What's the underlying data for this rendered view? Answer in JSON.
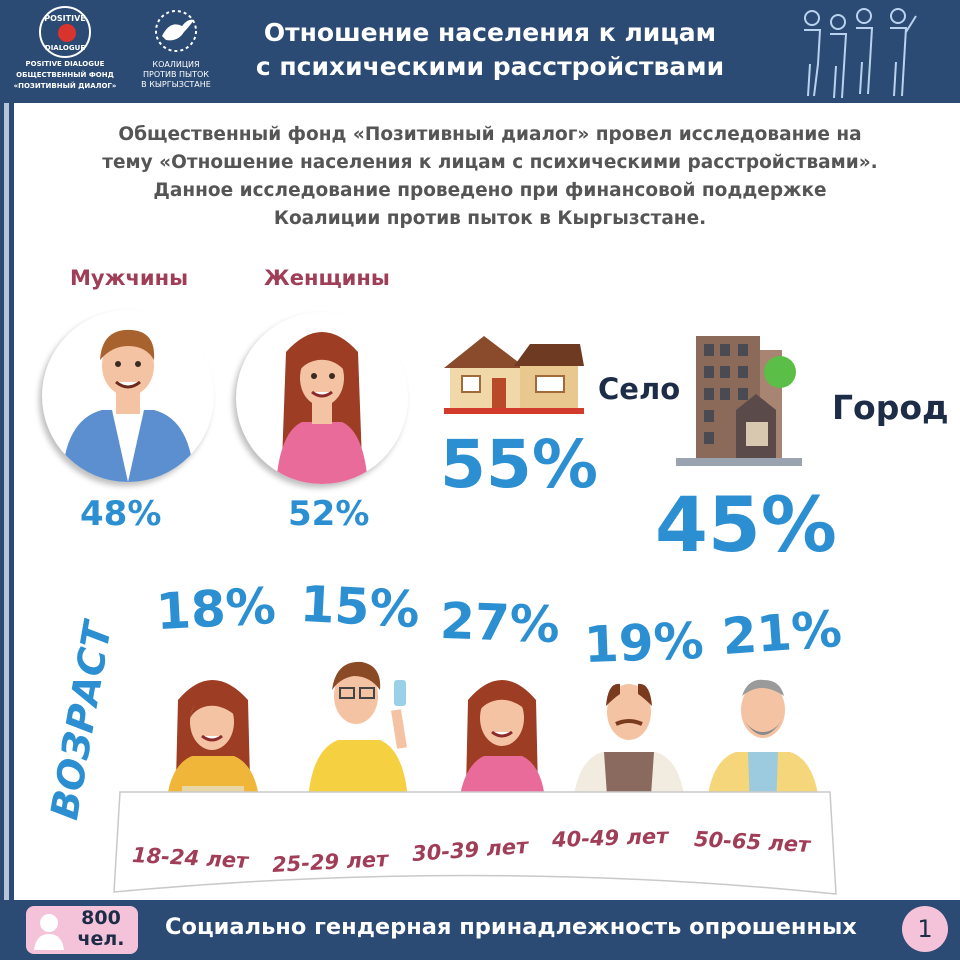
{
  "header": {
    "title_line1": "Отношение населения к лицам",
    "title_line2": "с психическими расстройствами",
    "logo1": {
      "circle_top": "POSITIVE",
      "circle_bottom": "DIALOGUE",
      "line1": "POSITIVE DIALOGUE",
      "line2": "ОБЩЕСТВЕННЫЙ ФОНД",
      "line3": "«ПОЗИТИВНЫЙ ДИАЛОГ»"
    },
    "logo2": {
      "line1": "КОАЛИЦИЯ",
      "line2": "ПРОТИВ ПЫТОК",
      "line3": "В КЫРГЫЗСТАНЕ"
    },
    "people_icon": "people-group-icon"
  },
  "intro": {
    "line1": "Общественный фонд «Позитивный диалог» провел исследование на",
    "line2": "тему «Отношение населения к лицам с психическими расстройствами».",
    "line3": "Данное исследование проведено при финансовой поддержке",
    "line4": "Коалиции против пыток в Кыргызстане."
  },
  "gender": {
    "men_label": "Мужчины",
    "men_pct": "48%",
    "men_value": 48,
    "women_label": "Женщины",
    "women_pct": "52%",
    "women_value": 52
  },
  "location": {
    "village_label": "Село",
    "village_pct": "55%",
    "village_value": 55,
    "city_label": "Город",
    "city_pct": "45%",
    "city_value": 45
  },
  "age": {
    "title": "ВОЗРАСТ",
    "groups": [
      {
        "range": "18-24 лет",
        "pct": "18%",
        "value": 18
      },
      {
        "range": "25-29 лет",
        "pct": "15%",
        "value": 15
      },
      {
        "range": "30-39 лет",
        "pct": "27%",
        "value": 27
      },
      {
        "range": "40-49 лет",
        "pct": "19%",
        "value": 19
      },
      {
        "range": "50-65 лет",
        "pct": "21%",
        "value": 21
      }
    ]
  },
  "footer": {
    "badge_line1": "800",
    "badge_line2": "чел.",
    "text": "Социально гендерная принадлежность опрошенных",
    "page": "1"
  },
  "colors": {
    "navy": "#2b4a74",
    "accent_blue": "#2c8fd1",
    "label_crimson": "#a03e58",
    "pink": "#f4c2d9"
  }
}
